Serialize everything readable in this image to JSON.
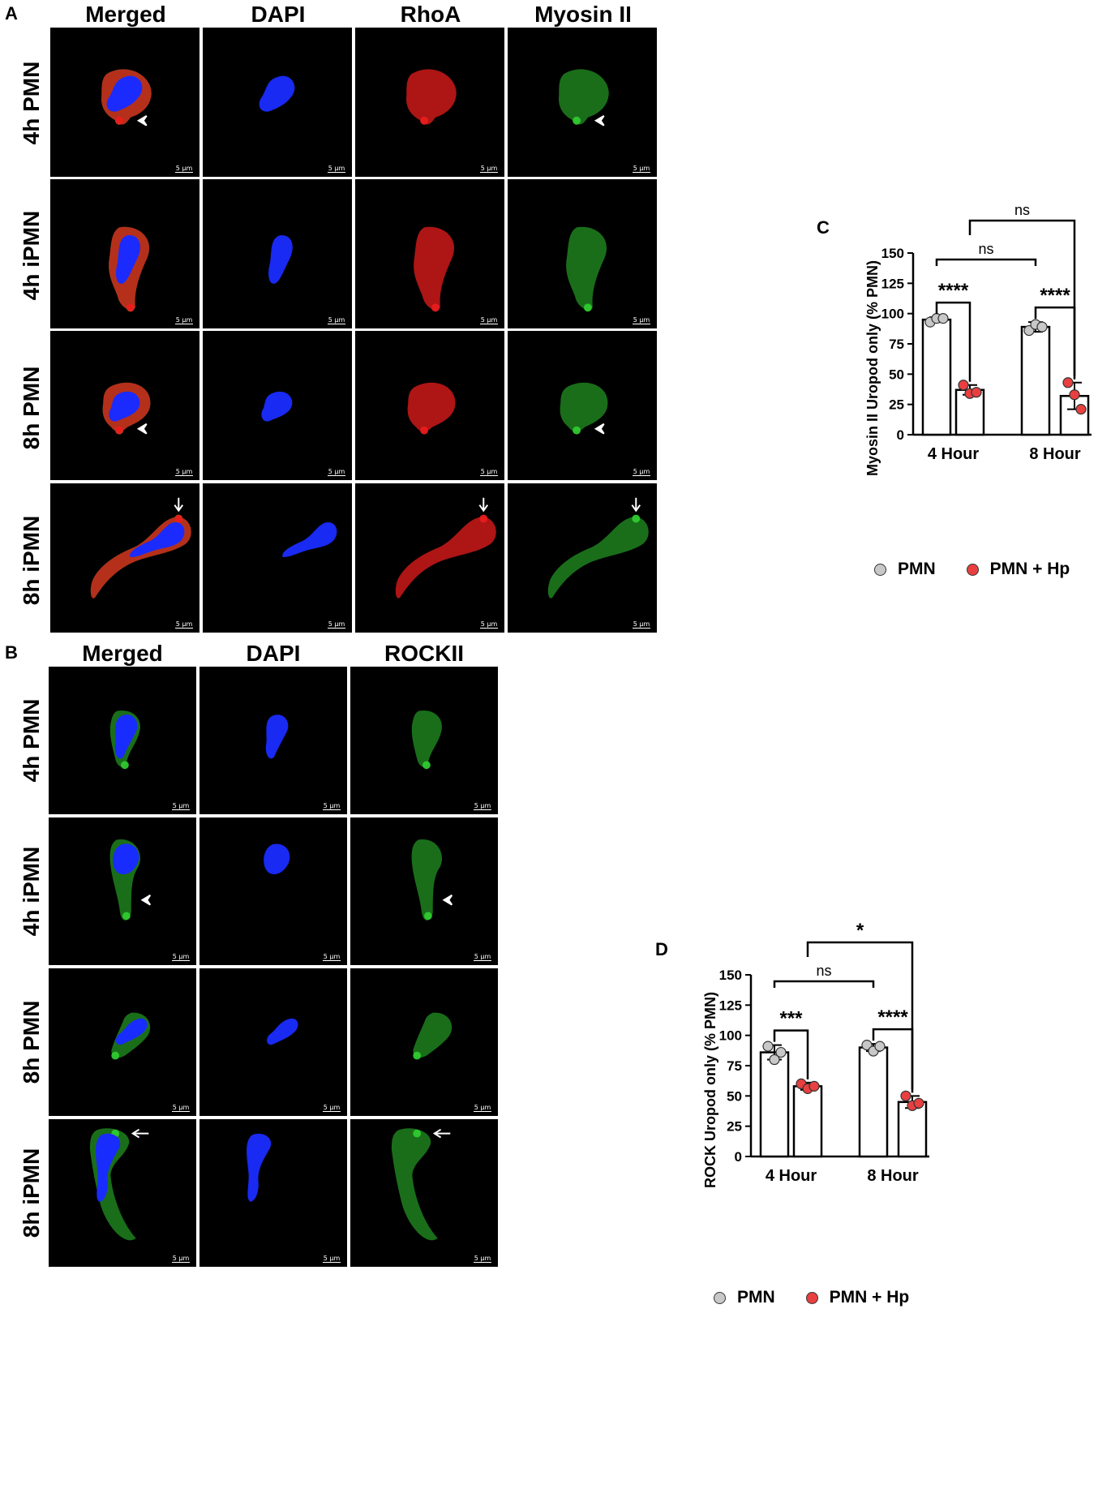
{
  "panel_a": {
    "label": "A",
    "columns": [
      "Merged",
      "DAPI",
      "RhoA",
      "Myosin II"
    ],
    "rows": [
      "4h PMN",
      "4h iPMN",
      "8h PMN",
      "8h iPMN"
    ],
    "scale_bar": "5 µm"
  },
  "panel_b": {
    "label": "B",
    "columns": [
      "Merged",
      "DAPI",
      "ROCKII"
    ],
    "rows": [
      "4h PMN",
      "4h iPMN",
      "8h PMN",
      "8h iPMN"
    ],
    "scale_bar": "5 µm"
  },
  "colors": {
    "pmn": "#c8c8c8",
    "pmn_hp": "#e84040",
    "dapi": "#1a2cff",
    "rhoa": "#e81c1c",
    "myosin": "#2fc92f"
  },
  "chart_data": [
    {
      "panel": "C",
      "type": "bar",
      "categories": [
        "4 Hour",
        "8 Hour"
      ],
      "ylabel": "Myosin II Uropod only (% PMN)",
      "ylim": [
        0,
        150
      ],
      "yticks": [
        0,
        25,
        50,
        75,
        100,
        125,
        150
      ],
      "series": [
        {
          "name": "PMN",
          "values": [
            95,
            89
          ],
          "errors": [
            2,
            4
          ],
          "points": [
            [
              93,
              96,
              96
            ],
            [
              86,
              91,
              89
            ]
          ]
        },
        {
          "name": "PMN + Hp",
          "values": [
            37,
            32
          ],
          "errors": [
            4,
            11
          ],
          "points": [
            [
              41,
              34,
              35
            ],
            [
              43,
              33,
              21
            ]
          ]
        }
      ],
      "annotations": [
        {
          "text": "****",
          "from": "4 Hour:PMN",
          "to": "4 Hour:PMN + Hp"
        },
        {
          "text": "****",
          "from": "8 Hour:PMN",
          "to": "8 Hour:PMN + Hp"
        },
        {
          "text": "ns",
          "from": "4 Hour:PMN",
          "to": "8 Hour:PMN"
        },
        {
          "text": "ns",
          "from": "4 Hour:PMN + Hp",
          "to": "8 Hour:PMN + Hp"
        }
      ]
    },
    {
      "panel": "D",
      "type": "bar",
      "categories": [
        "4 Hour",
        "8 Hour"
      ],
      "ylabel": "ROCK Uropod only (% PMN)",
      "ylim": [
        0,
        150
      ],
      "yticks": [
        0,
        25,
        50,
        75,
        100,
        125,
        150
      ],
      "series": [
        {
          "name": "PMN",
          "values": [
            86,
            90
          ],
          "errors": [
            6,
            3
          ],
          "points": [
            [
              91,
              80,
              86
            ],
            [
              92,
              87,
              91
            ]
          ]
        },
        {
          "name": "PMN + Hp",
          "values": [
            58,
            45
          ],
          "errors": [
            3,
            5
          ],
          "points": [
            [
              60,
              56,
              58
            ],
            [
              50,
              42,
              44
            ]
          ]
        }
      ],
      "annotations": [
        {
          "text": "***",
          "from": "4 Hour:PMN",
          "to": "4 Hour:PMN + Hp"
        },
        {
          "text": "****",
          "from": "8 Hour:PMN",
          "to": "8 Hour:PMN + Hp"
        },
        {
          "text": "ns",
          "from": "4 Hour:PMN",
          "to": "8 Hour:PMN"
        },
        {
          "text": "*",
          "from": "4 Hour:PMN + Hp",
          "to": "8 Hour:PMN + Hp"
        }
      ]
    }
  ]
}
